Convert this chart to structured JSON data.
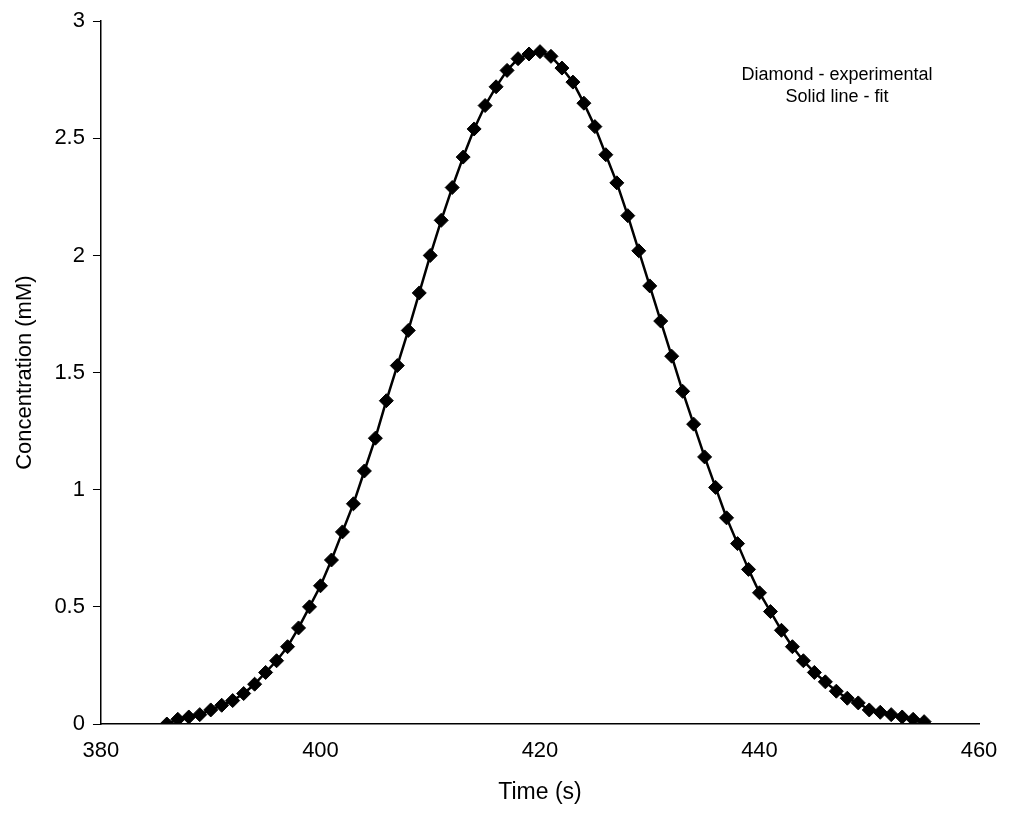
{
  "chart_data": {
    "type": "scatter",
    "xlabel": "Time (s)",
    "ylabel": "Concentration (mM)",
    "x": [
      386,
      387,
      388,
      389,
      390,
      391,
      392,
      393,
      394,
      395,
      396,
      397,
      398,
      399,
      400,
      401,
      402,
      403,
      404,
      405,
      406,
      407,
      408,
      409,
      410,
      411,
      412,
      413,
      414,
      415,
      416,
      417,
      418,
      419,
      420,
      421,
      422,
      423,
      424,
      425,
      426,
      427,
      428,
      429,
      430,
      431,
      432,
      433,
      434,
      435,
      436,
      437,
      438,
      439,
      440,
      441,
      442,
      443,
      444,
      445,
      446,
      447,
      448,
      449,
      450,
      451,
      452,
      453,
      454,
      455
    ],
    "series": [
      {
        "type": "scatter",
        "marker": "diamond",
        "color": "#000000",
        "values": [
          0.0,
          0.02,
          0.03,
          0.04,
          0.06,
          0.08,
          0.1,
          0.13,
          0.17,
          0.22,
          0.27,
          0.33,
          0.41,
          0.5,
          0.59,
          0.7,
          0.82,
          0.94,
          1.08,
          1.22,
          1.38,
          1.53,
          1.68,
          1.84,
          2.0,
          2.15,
          2.29,
          2.42,
          2.54,
          2.64,
          2.72,
          2.79,
          2.84,
          2.86,
          2.87,
          2.85,
          2.8,
          2.74,
          2.65,
          2.55,
          2.43,
          2.31,
          2.17,
          2.02,
          1.87,
          1.72,
          1.57,
          1.42,
          1.28,
          1.14,
          1.01,
          0.88,
          0.77,
          0.66,
          0.56,
          0.48,
          0.4,
          0.33,
          0.27,
          0.22,
          0.18,
          0.14,
          0.11,
          0.09,
          0.06,
          0.05,
          0.04,
          0.03,
          0.02,
          0.01
        ]
      },
      {
        "type": "line",
        "marker": "none",
        "line_style": "solid",
        "color": "#000000",
        "values": [
          0.0,
          0.02,
          0.03,
          0.04,
          0.06,
          0.08,
          0.1,
          0.13,
          0.17,
          0.22,
          0.27,
          0.33,
          0.41,
          0.5,
          0.59,
          0.7,
          0.82,
          0.94,
          1.08,
          1.22,
          1.38,
          1.53,
          1.68,
          1.84,
          2.0,
          2.15,
          2.29,
          2.42,
          2.54,
          2.64,
          2.72,
          2.79,
          2.84,
          2.86,
          2.87,
          2.85,
          2.8,
          2.74,
          2.65,
          2.55,
          2.43,
          2.31,
          2.17,
          2.02,
          1.87,
          1.72,
          1.57,
          1.42,
          1.28,
          1.14,
          1.01,
          0.88,
          0.77,
          0.66,
          0.56,
          0.48,
          0.4,
          0.33,
          0.27,
          0.22,
          0.18,
          0.14,
          0.11,
          0.09,
          0.06,
          0.05,
          0.04,
          0.03,
          0.02,
          0.01
        ]
      }
    ],
    "xlim": [
      380,
      460
    ],
    "xticks": [
      380,
      400,
      420,
      440,
      460
    ],
    "ylim": [
      0,
      3
    ],
    "yticks": [
      0,
      0.5,
      1,
      1.5,
      2,
      2.5,
      3
    ],
    "annotations": [
      "Diamond - experimental",
      "Solid line - fit"
    ]
  }
}
